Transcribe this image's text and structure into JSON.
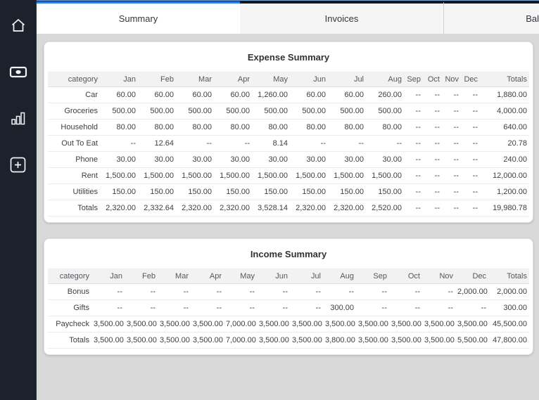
{
  "colors": {
    "accent_blue": "#2b7de1",
    "top_hairline_blue": "#7ea9de",
    "sidebar_bg": "#1b222c",
    "content_bg": "#d9d9d9",
    "active_tab_bg": "#ffffff",
    "inactive_tab_bg": "#f5f5f6",
    "table_header_bg": "#f2f2f2"
  },
  "sidebar": {
    "items": [
      {
        "icon": "home-icon"
      },
      {
        "icon": "cash-icon"
      },
      {
        "icon": "bar-chart-icon"
      },
      {
        "icon": "plus-square-icon"
      }
    ]
  },
  "tabs": [
    {
      "label": "Summary",
      "active": true
    },
    {
      "label": "Invoices",
      "active": false
    },
    {
      "label": "Bal",
      "active": false
    }
  ],
  "expense_summary": {
    "title": "Expense Summary",
    "columns": [
      "category",
      "Jan",
      "Feb",
      "Mar",
      "Apr",
      "May",
      "Jun",
      "Jul",
      "Aug",
      "Sep",
      "Oct",
      "Nov",
      "Dec",
      "Totals"
    ],
    "rows": [
      {
        "category": "Car",
        "values": [
          "60.00",
          "60.00",
          "60.00",
          "60.00",
          "1,260.00",
          "60.00",
          "60.00",
          "260.00",
          "--",
          "--",
          "--",
          "--",
          "1,880.00"
        ]
      },
      {
        "category": "Groceries",
        "values": [
          "500.00",
          "500.00",
          "500.00",
          "500.00",
          "500.00",
          "500.00",
          "500.00",
          "500.00",
          "--",
          "--",
          "--",
          "--",
          "4,000.00"
        ]
      },
      {
        "category": "Household",
        "values": [
          "80.00",
          "80.00",
          "80.00",
          "80.00",
          "80.00",
          "80.00",
          "80.00",
          "80.00",
          "--",
          "--",
          "--",
          "--",
          "640.00"
        ]
      },
      {
        "category": "Out To Eat",
        "values": [
          "--",
          "12.64",
          "--",
          "--",
          "8.14",
          "--",
          "--",
          "--",
          "--",
          "--",
          "--",
          "--",
          "20.78"
        ]
      },
      {
        "category": "Phone",
        "values": [
          "30.00",
          "30.00",
          "30.00",
          "30.00",
          "30.00",
          "30.00",
          "30.00",
          "30.00",
          "--",
          "--",
          "--",
          "--",
          "240.00"
        ]
      },
      {
        "category": "Rent",
        "values": [
          "1,500.00",
          "1,500.00",
          "1,500.00",
          "1,500.00",
          "1,500.00",
          "1,500.00",
          "1,500.00",
          "1,500.00",
          "--",
          "--",
          "--",
          "--",
          "12,000.00"
        ]
      },
      {
        "category": "Utilities",
        "values": [
          "150.00",
          "150.00",
          "150.00",
          "150.00",
          "150.00",
          "150.00",
          "150.00",
          "150.00",
          "--",
          "--",
          "--",
          "--",
          "1,200.00"
        ]
      },
      {
        "category": "Totals",
        "values": [
          "2,320.00",
          "2,332.64",
          "2,320.00",
          "2,320.00",
          "3,528.14",
          "2,320.00",
          "2,320.00",
          "2,520.00",
          "--",
          "--",
          "--",
          "--",
          "19,980.78"
        ]
      }
    ]
  },
  "income_summary": {
    "title": "Income Summary",
    "columns": [
      "category",
      "Jan",
      "Feb",
      "Mar",
      "Apr",
      "May",
      "Jun",
      "Jul",
      "Aug",
      "Sep",
      "Oct",
      "Nov",
      "Dec",
      "Totals"
    ],
    "rows": [
      {
        "category": "Bonus",
        "values": [
          "--",
          "--",
          "--",
          "--",
          "--",
          "--",
          "--",
          "--",
          "--",
          "--",
          "--",
          "2,000.00",
          "2,000.00"
        ]
      },
      {
        "category": "Gifts",
        "values": [
          "--",
          "--",
          "--",
          "--",
          "--",
          "--",
          "--",
          "300.00",
          "--",
          "--",
          "--",
          "--",
          "300.00"
        ]
      },
      {
        "category": "Paycheck",
        "values": [
          "3,500.00",
          "3,500.00",
          "3,500.00",
          "3,500.00",
          "7,000.00",
          "3,500.00",
          "3,500.00",
          "3,500.00",
          "3,500.00",
          "3,500.00",
          "3,500.00",
          "3,500.00",
          "45,500.00"
        ]
      },
      {
        "category": "Totals",
        "values": [
          "3,500.00",
          "3,500.00",
          "3,500.00",
          "3,500.00",
          "7,000.00",
          "3,500.00",
          "3,500.00",
          "3,800.00",
          "3,500.00",
          "3,500.00",
          "3,500.00",
          "5,500.00",
          "47,800.00"
        ]
      }
    ]
  }
}
